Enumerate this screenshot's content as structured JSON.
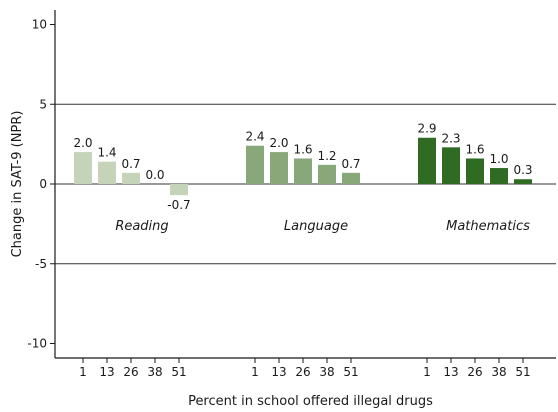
{
  "chart_data": {
    "type": "bar",
    "xlabel": "Percent in school offered illegal drugs",
    "ylabel": "Change in SAT-9 (NPR)",
    "ylim": [
      -11,
      11
    ],
    "yticks": [
      10,
      5,
      0,
      -5,
      -10
    ],
    "yticks_labels": [
      "10",
      "5",
      "0",
      "-5",
      "-10"
    ],
    "categories": [
      "1",
      "13",
      "26",
      "38",
      "51"
    ],
    "groups": [
      {
        "name": "Reading",
        "color": "#c5d3b8",
        "values": [
          2.0,
          1.4,
          0.7,
          0.0,
          -0.7
        ],
        "labels": [
          "2.0",
          "1.4",
          "0.7",
          "0.0",
          "-0.7"
        ]
      },
      {
        "name": "Language",
        "color": "#88a87a",
        "values": [
          2.4,
          2.0,
          1.6,
          1.2,
          0.7
        ],
        "labels": [
          "2.4",
          "2.0",
          "1.6",
          "1.2",
          "0.7"
        ]
      },
      {
        "name": "Mathematics",
        "color": "#2f6b22",
        "values": [
          2.9,
          2.3,
          1.6,
          1.0,
          0.3
        ],
        "labels": [
          "2.9",
          "2.3",
          "1.6",
          "1.0",
          "0.3"
        ]
      }
    ],
    "grid": "horizontal at 5, 0, -5",
    "axis_color": "#1a1a1a"
  }
}
